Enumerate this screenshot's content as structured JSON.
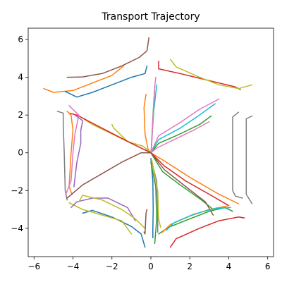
{
  "chart_data": {
    "type": "line",
    "title": "Transport Trajectory",
    "xlabel": "",
    "ylabel": "",
    "xlim": [
      -6.3,
      6.3
    ],
    "ylim": [
      -5.5,
      6.6
    ],
    "xticks": [
      -6,
      -4,
      -2,
      0,
      2,
      4,
      6
    ],
    "yticks": [
      -4,
      -2,
      0,
      2,
      4,
      6
    ],
    "grid": false,
    "legend": "none",
    "palette": [
      "#1f77b4",
      "#ff7f0e",
      "#2ca02c",
      "#d62728",
      "#9467bd",
      "#8c564b",
      "#e377c2",
      "#7f7f7f",
      "#bcbd22",
      "#17becf"
    ],
    "series": [
      {
        "color": "#8c564b",
        "points": [
          [
            -4.3,
            4.0
          ],
          [
            -3.5,
            4.02
          ],
          [
            -2.5,
            4.2
          ],
          [
            -1.5,
            4.6
          ],
          [
            -0.6,
            5.05
          ],
          [
            -0.2,
            5.4
          ],
          [
            -0.1,
            6.1
          ]
        ]
      },
      {
        "color": "#ff7f0e",
        "points": [
          [
            -5.5,
            3.4
          ],
          [
            -5.0,
            3.2
          ],
          [
            -4.0,
            3.3
          ],
          [
            -3.0,
            3.7
          ],
          [
            -2.0,
            4.1
          ],
          [
            -1.4,
            4.6
          ]
        ]
      },
      {
        "color": "#1f77b4",
        "points": [
          [
            -4.4,
            3.25
          ],
          [
            -3.8,
            2.95
          ],
          [
            -3.0,
            3.2
          ],
          [
            -2.0,
            3.6
          ],
          [
            -1.0,
            4.0
          ],
          [
            -0.3,
            4.2
          ],
          [
            -0.2,
            4.6
          ]
        ]
      },
      {
        "color": "#d62728",
        "points": [
          [
            0.4,
            4.85
          ],
          [
            0.4,
            4.45
          ],
          [
            1.5,
            4.2
          ],
          [
            2.5,
            3.95
          ],
          [
            3.5,
            3.7
          ],
          [
            4.3,
            3.5
          ],
          [
            4.6,
            3.35
          ]
        ]
      },
      {
        "color": "#bcbd22",
        "points": [
          [
            1.0,
            4.95
          ],
          [
            1.3,
            4.55
          ],
          [
            2.5,
            4.0
          ],
          [
            3.5,
            3.6
          ],
          [
            4.5,
            3.4
          ],
          [
            5.2,
            3.6
          ]
        ]
      },
      {
        "color": "#ff7f0e",
        "points": [
          [
            -0.25,
            3.1
          ],
          [
            -0.35,
            2.4
          ],
          [
            -0.3,
            1.0
          ],
          [
            -0.15,
            0.2
          ],
          [
            0.0,
            0.0
          ]
        ]
      },
      {
        "color": "#2ca02c",
        "points": [
          [
            0.2,
            3.5
          ],
          [
            0.12,
            2.2
          ],
          [
            0.06,
            1.0
          ],
          [
            0.02,
            0.2
          ],
          [
            0.0,
            0.0
          ]
        ]
      },
      {
        "color": "#17becf",
        "points": [
          [
            0.3,
            3.6
          ],
          [
            0.15,
            2.2
          ],
          [
            0.07,
            1.0
          ],
          [
            0.02,
            0.1
          ],
          [
            0.0,
            0.0
          ]
        ]
      },
      {
        "color": "#e377c2",
        "points": [
          [
            0.25,
            4.0
          ],
          [
            0.2,
            3.5
          ],
          [
            0.12,
            2.0
          ],
          [
            0.05,
            0.6
          ],
          [
            0.0,
            0.0
          ]
        ]
      },
      {
        "color": "#2ca02c",
        "points": [
          [
            0.0,
            0.0
          ],
          [
            0.4,
            0.5
          ],
          [
            1.5,
            1.0
          ],
          [
            2.5,
            1.5
          ],
          [
            3.1,
            1.95
          ]
        ]
      },
      {
        "color": "#17becf",
        "points": [
          [
            0.0,
            0.0
          ],
          [
            0.4,
            0.7
          ],
          [
            1.5,
            1.3
          ],
          [
            2.5,
            2.0
          ],
          [
            3.3,
            2.6
          ]
        ]
      },
      {
        "color": "#e377c2",
        "points": [
          [
            0.0,
            0.0
          ],
          [
            0.4,
            0.9
          ],
          [
            1.5,
            1.6
          ],
          [
            2.5,
            2.3
          ],
          [
            3.5,
            2.85
          ]
        ]
      },
      {
        "color": "#e377c2",
        "points": [
          [
            0.0,
            0.0
          ],
          [
            0.3,
            0.25
          ],
          [
            1.2,
            0.7
          ],
          [
            2.2,
            1.2
          ],
          [
            3.0,
            1.65
          ]
        ]
      },
      {
        "color": "#bcbd22",
        "points": [
          [
            0.0,
            0.0
          ],
          [
            -0.8,
            0.4
          ],
          [
            -2.0,
            1.0
          ],
          [
            -3.0,
            1.5
          ],
          [
            -3.6,
            1.9
          ]
        ]
      },
      {
        "color": "#bcbd22",
        "points": [
          [
            0.0,
            0.0
          ],
          [
            -0.4,
            0.35
          ],
          [
            -1.2,
            0.6
          ],
          [
            -1.9,
            1.3
          ],
          [
            -2.0,
            1.5
          ]
        ]
      },
      {
        "color": "#d62728",
        "points": [
          [
            0.0,
            0.0
          ],
          [
            -1.0,
            0.5
          ],
          [
            -2.5,
            1.3
          ],
          [
            -3.8,
            2.0
          ],
          [
            -4.2,
            2.1
          ]
        ]
      },
      {
        "color": "#7f7f7f",
        "points": [
          [
            -4.3,
            -2.5
          ],
          [
            -4.4,
            -2.0
          ],
          [
            -4.45,
            0.0
          ],
          [
            -4.5,
            1.5
          ],
          [
            -4.5,
            2.1
          ],
          [
            -4.8,
            2.2
          ]
        ]
      },
      {
        "color": "#ff7f0e",
        "points": [
          [
            -4.05,
            -2.2
          ],
          [
            -4.2,
            -1.8
          ],
          [
            -4.1,
            0.0
          ],
          [
            -4.0,
            1.2
          ],
          [
            -4.1,
            2.0
          ],
          [
            -4.3,
            2.2
          ]
        ]
      },
      {
        "color": "#e377c2",
        "points": [
          [
            -4.35,
            -2.15
          ],
          [
            -4.1,
            -1.5
          ],
          [
            -4.0,
            0.0
          ],
          [
            -3.9,
            1.0
          ],
          [
            -3.7,
            2.0
          ],
          [
            -4.2,
            2.5
          ]
        ]
      },
      {
        "color": "#9467bd",
        "points": [
          [
            -3.95,
            -1.8
          ],
          [
            -3.8,
            -0.5
          ],
          [
            -3.6,
            0.5
          ],
          [
            -3.6,
            1.2
          ],
          [
            -3.5,
            1.7
          ],
          [
            -3.9,
            2.0
          ]
        ]
      },
      {
        "color": "#8c564b",
        "points": [
          [
            -4.3,
            -2.4
          ],
          [
            -3.5,
            -1.7
          ],
          [
            -2.5,
            -1.1
          ],
          [
            -1.5,
            -0.5
          ],
          [
            -0.5,
            0.0
          ],
          [
            0.0,
            0.0
          ]
        ]
      },
      {
        "color": "#7f7f7f",
        "points": [
          [
            4.5,
            2.15
          ],
          [
            4.2,
            1.9
          ],
          [
            4.2,
            0.0
          ],
          [
            4.2,
            -2.0
          ],
          [
            4.35,
            -2.3
          ],
          [
            4.7,
            -2.4
          ]
        ]
      },
      {
        "color": "#7f7f7f",
        "points": [
          [
            5.2,
            1.95
          ],
          [
            4.9,
            1.8
          ],
          [
            4.9,
            0.0
          ],
          [
            4.9,
            -2.2
          ],
          [
            5.2,
            -2.7
          ]
        ]
      },
      {
        "color": "#ff7f0e",
        "points": [
          [
            0.0,
            0.0
          ],
          [
            0.8,
            -0.5
          ],
          [
            2.0,
            -1.3
          ],
          [
            3.5,
            -2.2
          ],
          [
            4.5,
            -2.7
          ]
        ]
      },
      {
        "color": "#d62728",
        "points": [
          [
            0.0,
            0.0
          ],
          [
            0.7,
            -0.7
          ],
          [
            1.8,
            -1.5
          ],
          [
            3.0,
            -2.2
          ],
          [
            4.0,
            -2.8
          ]
        ]
      },
      {
        "color": "#2ca02c",
        "points": [
          [
            0.0,
            0.0
          ],
          [
            0.6,
            -1.0
          ],
          [
            1.5,
            -1.7
          ],
          [
            2.6,
            -2.5
          ],
          [
            3.2,
            -3.0
          ]
        ]
      },
      {
        "color": "#8c564b",
        "points": [
          [
            0.0,
            0.0
          ],
          [
            0.7,
            -0.9
          ],
          [
            1.8,
            -1.8
          ],
          [
            2.8,
            -2.6
          ],
          [
            3.2,
            -3.3
          ]
        ]
      },
      {
        "color": "#1f77b4",
        "points": [
          [
            -3.5,
            -3.2
          ],
          [
            -3.0,
            -3.05
          ],
          [
            -2.0,
            -3.4
          ],
          [
            -1.0,
            -3.9
          ],
          [
            -0.5,
            -4.3
          ],
          [
            -0.3,
            -5.0
          ]
        ]
      },
      {
        "color": "#bcbd22",
        "points": [
          [
            -4.2,
            -2.65
          ],
          [
            -3.5,
            -3.0
          ],
          [
            -2.5,
            -3.3
          ],
          [
            -1.5,
            -3.6
          ],
          [
            -1.0,
            -4.3
          ]
        ]
      },
      {
        "color": "#9467bd",
        "points": [
          [
            -4.1,
            -2.9
          ],
          [
            -3.8,
            -2.6
          ],
          [
            -3.0,
            -2.4
          ],
          [
            -2.2,
            -2.4
          ],
          [
            -1.2,
            -2.9
          ],
          [
            -0.8,
            -3.6
          ]
        ]
      },
      {
        "color": "#bcbd22",
        "points": [
          [
            -3.7,
            -2.6
          ],
          [
            -3.5,
            -2.25
          ],
          [
            -2.5,
            -2.5
          ],
          [
            -1.5,
            -3.0
          ],
          [
            -0.8,
            -3.5
          ],
          [
            -0.3,
            -4.0
          ]
        ]
      },
      {
        "color": "#8c564b",
        "points": [
          [
            -0.2,
            -3.0
          ],
          [
            -0.25,
            -3.2
          ],
          [
            -0.3,
            -4.3
          ],
          [
            -0.35,
            -4.2
          ]
        ]
      },
      {
        "color": "#1f77b4",
        "points": [
          [
            0.0,
            -0.3
          ],
          [
            0.1,
            -1.5
          ],
          [
            0.12,
            -3.0
          ],
          [
            0.1,
            -4.0
          ],
          [
            0.1,
            -4.5
          ]
        ]
      },
      {
        "color": "#2ca02c",
        "points": [
          [
            0.0,
            -0.5
          ],
          [
            0.25,
            -1.8
          ],
          [
            0.3,
            -3.5
          ],
          [
            0.2,
            -4.8
          ]
        ]
      },
      {
        "color": "#9467bd",
        "points": [
          [
            0.0,
            -0.3
          ],
          [
            0.3,
            -1.5
          ],
          [
            0.35,
            -3.0
          ],
          [
            0.35,
            -4.2
          ]
        ]
      },
      {
        "color": "#bcbd22",
        "points": [
          [
            0.05,
            -0.4
          ],
          [
            0.35,
            -2.0
          ],
          [
            0.4,
            -3.5
          ],
          [
            0.5,
            -3.95
          ]
        ]
      },
      {
        "color": "#d62728",
        "points": [
          [
            1.0,
            -5.0
          ],
          [
            1.3,
            -4.55
          ],
          [
            2.5,
            -4.0
          ],
          [
            3.5,
            -3.6
          ],
          [
            4.5,
            -3.4
          ],
          [
            4.8,
            -3.45
          ]
        ]
      },
      {
        "color": "#2ca02c",
        "points": [
          [
            0.4,
            -4.3
          ],
          [
            0.9,
            -3.95
          ],
          [
            2.0,
            -3.5
          ],
          [
            3.0,
            -3.1
          ],
          [
            3.8,
            -2.9
          ],
          [
            4.2,
            -3.1
          ]
        ]
      },
      {
        "color": "#ff7f0e",
        "points": [
          [
            0.6,
            -4.2
          ],
          [
            1.0,
            -3.8
          ],
          [
            2.0,
            -3.35
          ],
          [
            3.0,
            -3.0
          ],
          [
            4.0,
            -2.8
          ]
        ]
      },
      {
        "color": "#17becf",
        "points": [
          [
            0.8,
            -4.1
          ],
          [
            1.2,
            -3.7
          ],
          [
            2.2,
            -3.25
          ],
          [
            3.3,
            -2.95
          ],
          [
            4.1,
            -2.9
          ]
        ]
      }
    ]
  }
}
